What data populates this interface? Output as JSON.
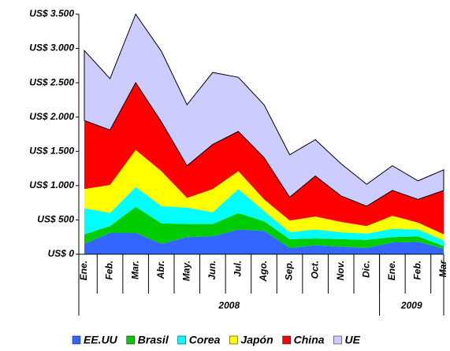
{
  "chart_data": {
    "type": "stacked_area",
    "categories": [
      "Ene.",
      "Feb.",
      "Mar.",
      "Abr.",
      "May.",
      "Jun.",
      "Jul.",
      "Ago.",
      "Sep.",
      "Oct.",
      "Nov.",
      "Dic.",
      "Ene.",
      "Feb.",
      "Mar"
    ],
    "x_groups": [
      {
        "label": "2008",
        "count": 12
      },
      {
        "label": "2009",
        "count": 3
      }
    ],
    "series": [
      {
        "name": "EE.UU",
        "color": "#3366ff",
        "values": [
          150,
          310,
          310,
          150,
          250,
          260,
          360,
          340,
          90,
          130,
          110,
          90,
          170,
          180,
          80
        ]
      },
      {
        "name": "Brasil",
        "color": "#00cc00",
        "values": [
          140,
          100,
          380,
          300,
          190,
          180,
          240,
          140,
          130,
          100,
          110,
          120,
          80,
          80,
          40
        ]
      },
      {
        "name": "Corea",
        "color": "#00ffff",
        "values": [
          380,
          190,
          290,
          250,
          240,
          170,
          350,
          150,
          100,
          130,
          100,
          90,
          120,
          100,
          80
        ]
      },
      {
        "name": "Japón",
        "color": "#ffff00",
        "values": [
          280,
          410,
          540,
          510,
          140,
          340,
          260,
          170,
          170,
          190,
          150,
          110,
          190,
          100,
          90
        ]
      },
      {
        "name": "China",
        "color": "#ff0000",
        "values": [
          1000,
          800,
          980,
          720,
          470,
          650,
          580,
          610,
          340,
          590,
          380,
          290,
          370,
          340,
          640
        ]
      },
      {
        "name": "UE",
        "color": "#ccccff",
        "values": [
          1020,
          750,
          1000,
          1030,
          890,
          1050,
          790,
          770,
          620,
          530,
          470,
          320,
          360,
          270,
          300
        ]
      }
    ],
    "ylim": [
      0,
      3500
    ],
    "yticks": [
      {
        "value": 0,
        "label": "US$ 0"
      },
      {
        "value": 500,
        "label": "US$ 500"
      },
      {
        "value": 1000,
        "label": "US$ 1.000"
      },
      {
        "value": 1500,
        "label": "US$ 1.500"
      },
      {
        "value": 2000,
        "label": "US$ 2.000"
      },
      {
        "value": 2500,
        "label": "US$ 2.500"
      },
      {
        "value": 3000,
        "label": "US$ 3.000"
      },
      {
        "value": 3500,
        "label": "US$ 3.500"
      }
    ],
    "legend": "bottom"
  }
}
